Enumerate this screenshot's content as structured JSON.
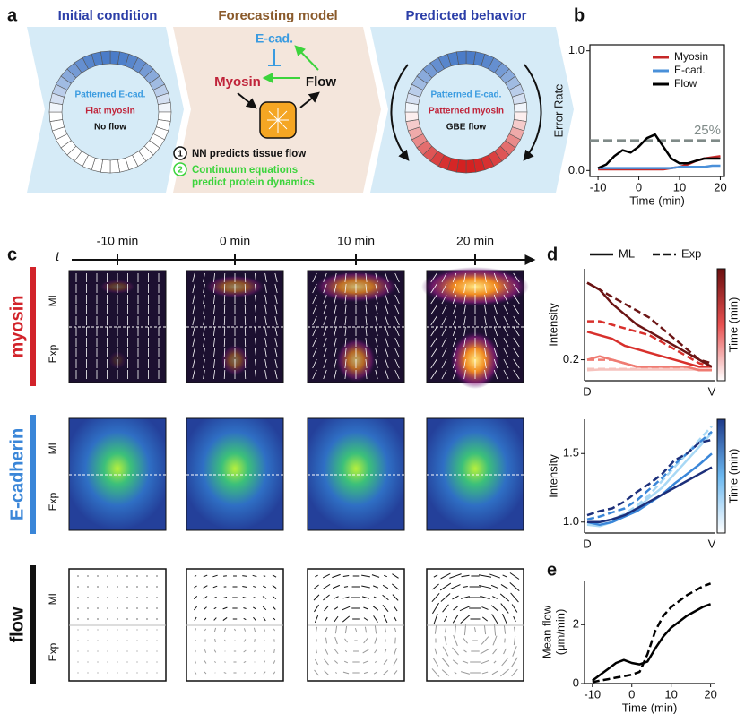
{
  "panel_labels": [
    "a",
    "b",
    "c",
    "d",
    "e"
  ],
  "panel_a": {
    "stages": [
      "Initial condition",
      "Forecasting model",
      "Predicted behavior"
    ],
    "initial": [
      "Patterned E-cad.",
      "Flat myosin",
      "No flow"
    ],
    "model_nodes": [
      "E-cad.",
      "Myosin",
      "Flow"
    ],
    "steps": [
      {
        "number": "1",
        "lines": [
          "NN predicts tissue flow"
        ]
      },
      {
        "number": "2",
        "lines": [
          "Continuum equations",
          "predict protein dynamics"
        ]
      }
    ],
    "predicted": [
      "Patterned E-cad.",
      "Patterned myosin",
      "GBE flow"
    ]
  },
  "panel_c": {
    "time_axis_label": "t",
    "times": [
      "-10 min",
      "0 min",
      "10 min",
      "20 min"
    ],
    "rows": [
      "myosin",
      "E-cadherin",
      "flow"
    ],
    "sublabels": [
      "ML",
      "Exp"
    ]
  },
  "chart_data": [
    {
      "type": "line",
      "ylabel": "Error Rate",
      "xlabel": "Time (min)",
      "x": [
        -10,
        -8,
        -6,
        -4,
        -2,
        0,
        2,
        4,
        6,
        8,
        10,
        12,
        14,
        16,
        18,
        20
      ],
      "xlim": [
        -12,
        21
      ],
      "xticks": [
        -10,
        0,
        10,
        20
      ],
      "ylim": [
        -0.05,
        1.05
      ],
      "yticks": [
        {
          "value": 0,
          "label": "0.0"
        },
        {
          "value": 1,
          "label": "1.0"
        }
      ],
      "legend_position": "upper right",
      "reference": {
        "value": 0.25,
        "label": "25%",
        "color": "#7f8a88"
      },
      "series": [
        {
          "name": "Myosin",
          "color": "#c62828",
          "values": [
            0.01,
            0.01,
            0.01,
            0.01,
            0.01,
            0.01,
            0.01,
            0.01,
            0.01,
            0.02,
            0.03,
            0.05,
            0.08,
            0.1,
            0.11,
            0.12
          ]
        },
        {
          "name": "E-cad.",
          "color": "#4a90d9",
          "values": [
            0.02,
            0.02,
            0.02,
            0.02,
            0.02,
            0.02,
            0.02,
            0.02,
            0.02,
            0.02,
            0.03,
            0.03,
            0.03,
            0.03,
            0.04,
            0.04
          ]
        },
        {
          "name": "Flow",
          "color": "#000000",
          "values": [
            0.02,
            0.05,
            0.12,
            0.17,
            0.15,
            0.2,
            0.27,
            0.3,
            0.2,
            0.1,
            0.06,
            0.06,
            0.08,
            0.1,
            0.1,
            0.1
          ]
        }
      ]
    },
    {
      "type": "line",
      "ylabel": "Intensity",
      "categories": [
        "D",
        null,
        null,
        null,
        null,
        null,
        null,
        null,
        null,
        null,
        "V"
      ],
      "ylim": [
        0.17,
        0.33
      ],
      "yticks": [
        0.2
      ],
      "legend": [
        {
          "label": "ML",
          "linestyle": "solid"
        },
        {
          "label": "Exp",
          "linestyle": "dashed"
        }
      ],
      "colorbar": {
        "label": "Time (min)",
        "colors": [
          "#ffffff",
          "#e85050",
          "#6b0f0f"
        ]
      },
      "series": [
        {
          "color": "#f6c2bd",
          "linestyle": "solid",
          "values": [
            0.185,
            0.186,
            0.186,
            0.186,
            0.186,
            0.186,
            0.186,
            0.186,
            0.186,
            0.186,
            0.186
          ]
        },
        {
          "color": "#f6c2bd",
          "linestyle": "dashed",
          "values": [
            0.187,
            0.187,
            0.187,
            0.187,
            0.187,
            0.187,
            0.187,
            0.187,
            0.187,
            0.186,
            0.186
          ]
        },
        {
          "color": "#ef7b72",
          "linestyle": "solid",
          "values": [
            0.2,
            0.205,
            0.2,
            0.195,
            0.19,
            0.19,
            0.19,
            0.19,
            0.19,
            0.185,
            0.185
          ]
        },
        {
          "color": "#ef7b72",
          "linestyle": "dashed",
          "values": [
            0.2,
            0.2,
            0.2,
            0.195,
            0.19,
            0.19,
            0.19,
            0.19,
            0.19,
            0.185,
            0.185
          ]
        },
        {
          "color": "#d8302c",
          "linestyle": "solid",
          "values": [
            0.24,
            0.235,
            0.23,
            0.22,
            0.215,
            0.21,
            0.205,
            0.2,
            0.195,
            0.19,
            0.19
          ]
        },
        {
          "color": "#d8302c",
          "linestyle": "dashed",
          "values": [
            0.255,
            0.255,
            0.25,
            0.245,
            0.24,
            0.235,
            0.225,
            0.215,
            0.205,
            0.195,
            0.19
          ]
        },
        {
          "color": "#6b1414",
          "linestyle": "solid",
          "values": [
            0.31,
            0.3,
            0.28,
            0.265,
            0.25,
            0.24,
            0.23,
            0.22,
            0.21,
            0.2,
            0.19
          ]
        },
        {
          "color": "#6b1414",
          "linestyle": "dashed",
          "values": [
            0.31,
            0.3,
            0.29,
            0.28,
            0.27,
            0.26,
            0.245,
            0.23,
            0.215,
            0.2,
            0.195
          ]
        }
      ]
    },
    {
      "type": "line",
      "ylabel": "Intensity",
      "categories": [
        "D",
        null,
        null,
        null,
        null,
        null,
        null,
        null,
        null,
        null,
        "V"
      ],
      "ylim": [
        0.92,
        1.75
      ],
      "yticks": [
        {
          "value": 1,
          "label": "1.0"
        },
        {
          "value": 1.5,
          "label": "1.5"
        }
      ],
      "colorbar": {
        "label": "Time (min)",
        "colors": [
          "#ffffff",
          "#6bb8f0",
          "#1e3a8a"
        ]
      },
      "series": [
        {
          "color": "#a8d8f5",
          "linestyle": "solid",
          "values": [
            0.98,
            0.97,
            1.0,
            1.05,
            1.1,
            1.18,
            1.25,
            1.35,
            1.45,
            1.55,
            1.65
          ]
        },
        {
          "color": "#a8d8f5",
          "linestyle": "dashed",
          "values": [
            0.98,
            1.0,
            1.02,
            1.06,
            1.12,
            1.2,
            1.3,
            1.4,
            1.5,
            1.6,
            1.7
          ]
        },
        {
          "color": "#3a86d8",
          "linestyle": "solid",
          "values": [
            1.0,
            0.98,
            1.0,
            1.04,
            1.08,
            1.14,
            1.2,
            1.28,
            1.35,
            1.42,
            1.5
          ]
        },
        {
          "color": "#3a86d8",
          "linestyle": "dashed",
          "values": [
            1.02,
            1.04,
            1.07,
            1.1,
            1.16,
            1.24,
            1.32,
            1.42,
            1.5,
            1.58,
            1.66
          ]
        },
        {
          "color": "#1c2f7a",
          "linestyle": "solid",
          "values": [
            1.0,
            1.0,
            1.02,
            1.05,
            1.1,
            1.15,
            1.2,
            1.25,
            1.3,
            1.35,
            1.4
          ]
        },
        {
          "color": "#1c2f7a",
          "linestyle": "dashed",
          "values": [
            1.05,
            1.08,
            1.1,
            1.15,
            1.22,
            1.28,
            1.35,
            1.45,
            1.5,
            1.58,
            1.6
          ]
        }
      ]
    },
    {
      "type": "line",
      "ylabel": [
        "Mean flow",
        "(μm/min)"
      ],
      "xlabel": "Time (min)",
      "x": [
        -10,
        -8,
        -6,
        -4,
        -2,
        0,
        2,
        4,
        6,
        8,
        10,
        12,
        14,
        16,
        18,
        20
      ],
      "xlim": [
        -12,
        21
      ],
      "xticks": [
        -10,
        0,
        10,
        20
      ],
      "ylim": [
        0,
        3.5
      ],
      "yticks": [
        0,
        2
      ],
      "series": [
        {
          "color": "#000000",
          "linestyle": "solid",
          "values": [
            0.1,
            0.3,
            0.5,
            0.7,
            0.8,
            0.7,
            0.65,
            0.75,
            1.2,
            1.6,
            1.9,
            2.1,
            2.3,
            2.45,
            2.6,
            2.7
          ]
        },
        {
          "color": "#000000",
          "linestyle": "dashed",
          "values": [
            0.05,
            0.1,
            0.15,
            0.2,
            0.25,
            0.3,
            0.4,
            1.0,
            1.8,
            2.3,
            2.6,
            2.8,
            3.0,
            3.15,
            3.3,
            3.4
          ]
        }
      ]
    }
  ]
}
